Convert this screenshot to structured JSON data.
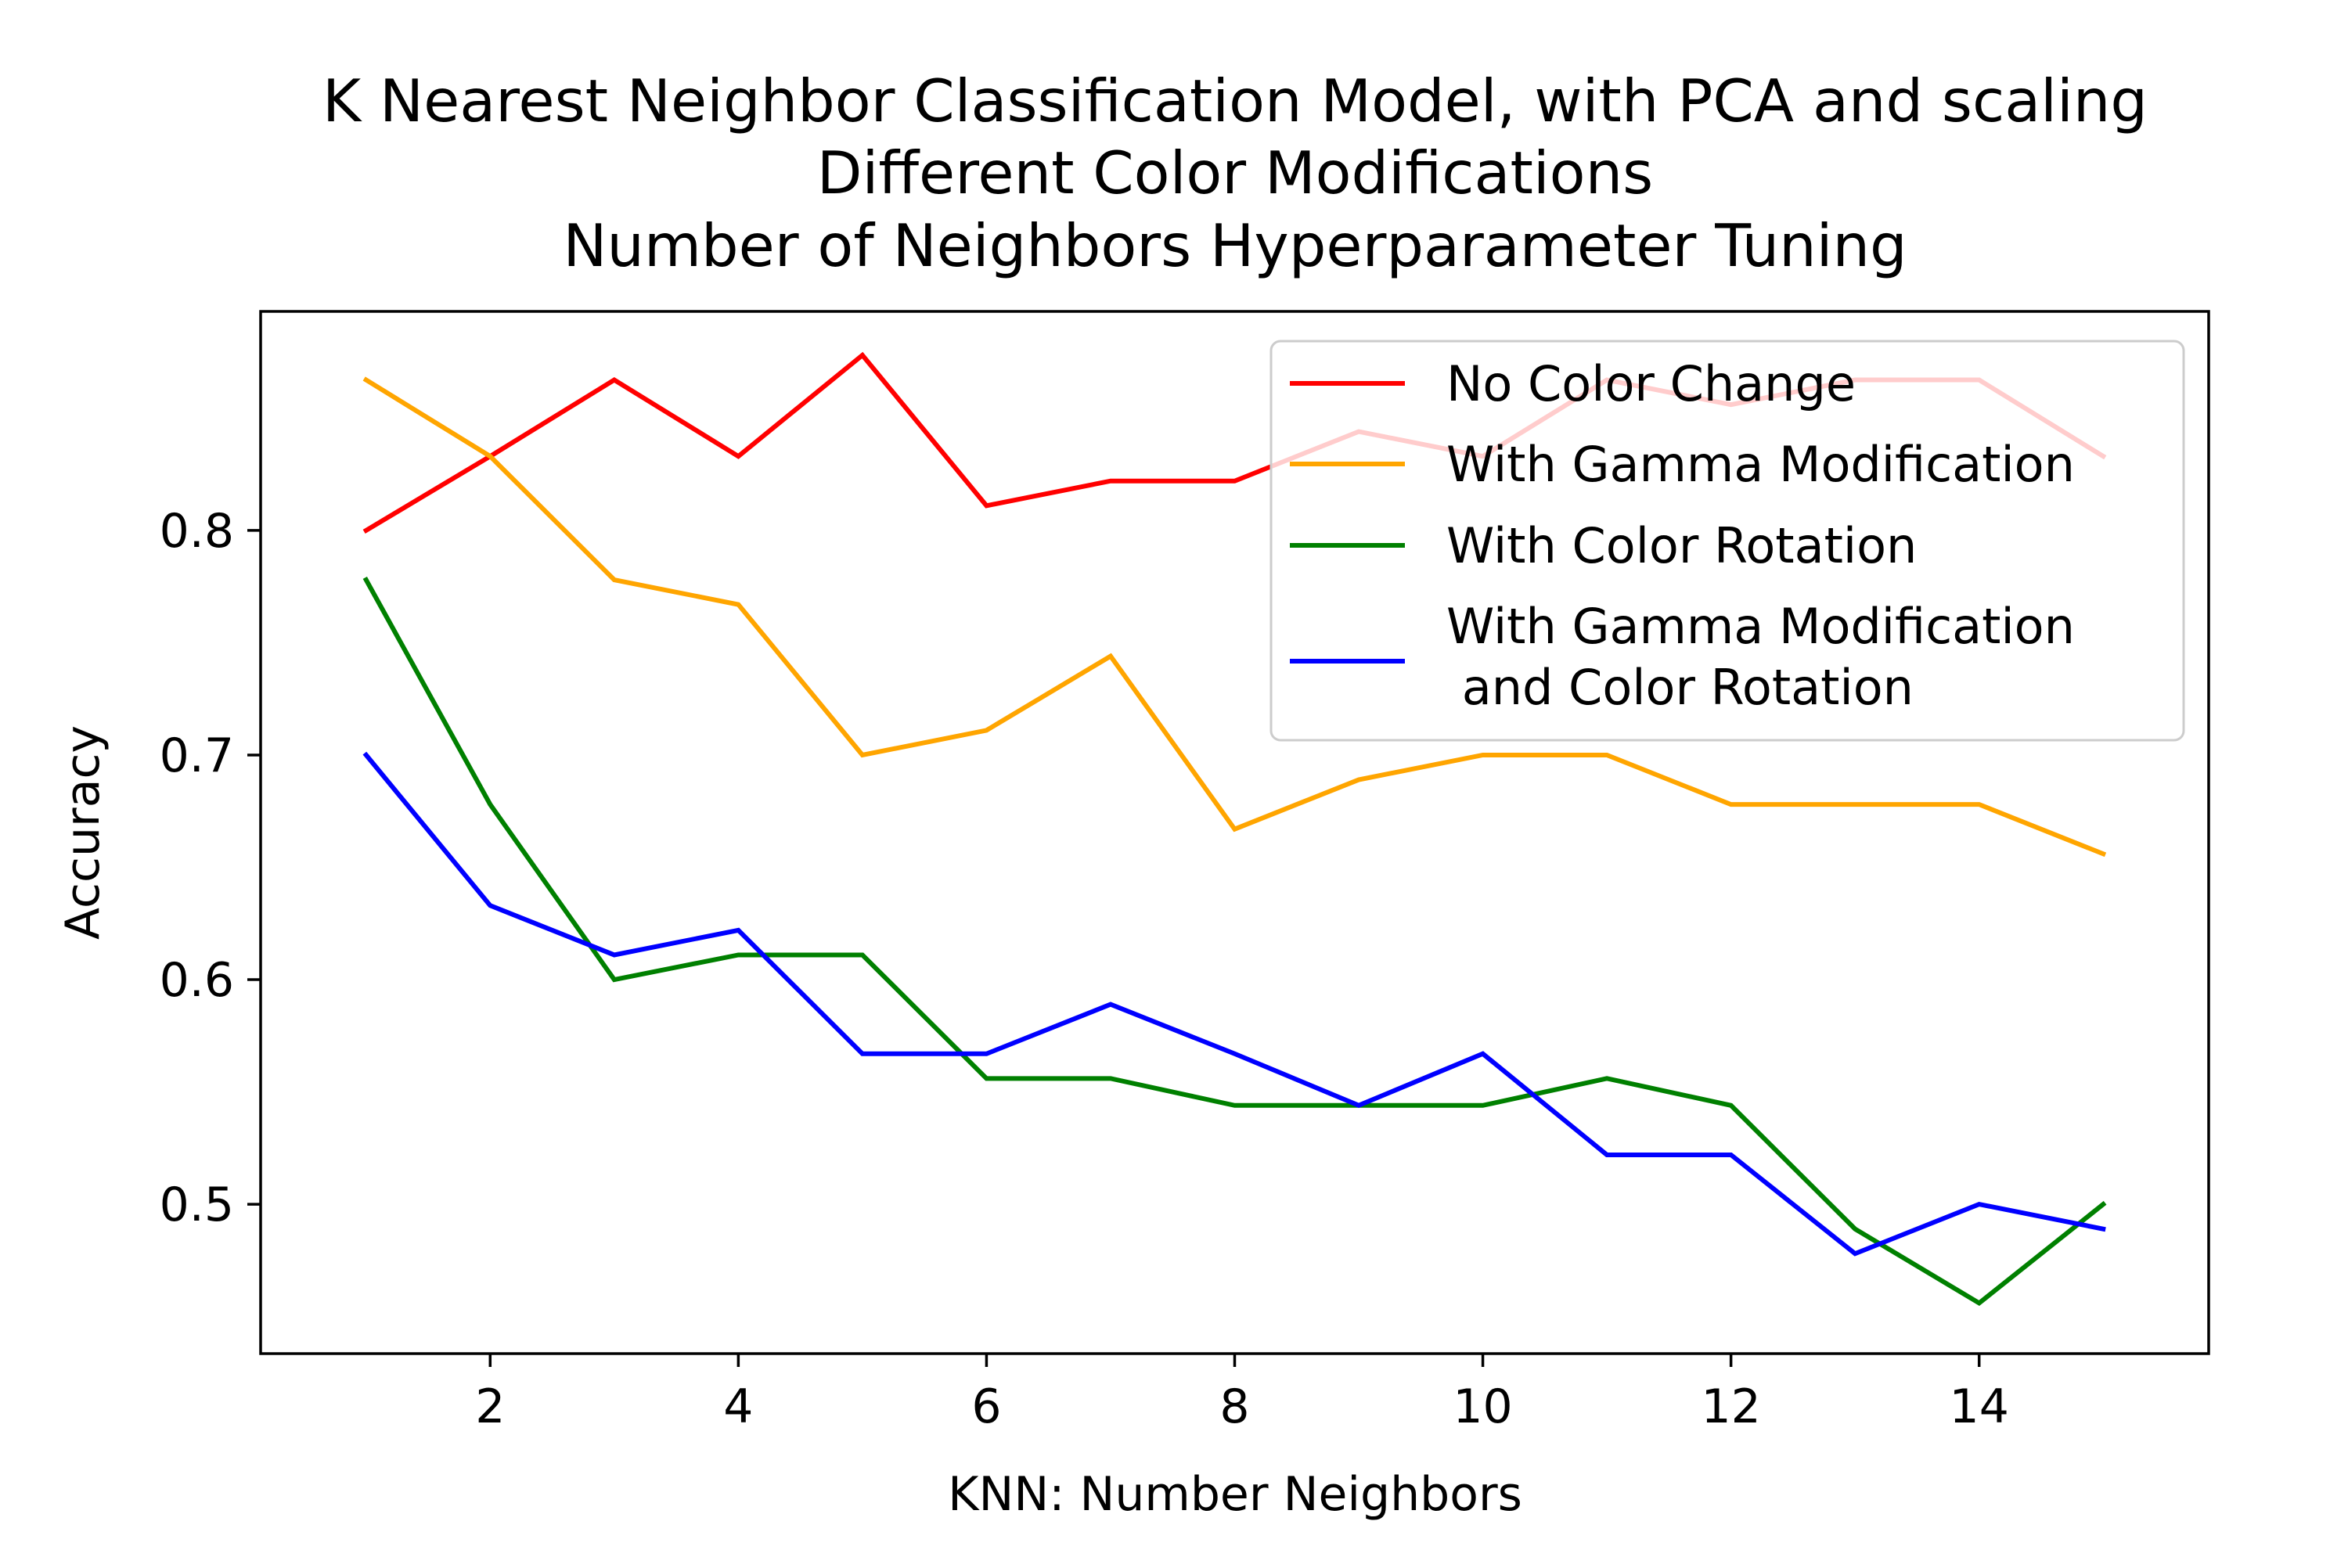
{
  "chart_data": {
    "type": "line",
    "title_lines": [
      "K Nearest Neighbor Classification Model, with PCA and scaling",
      "Different Color Modifications",
      "Number of Neighbors Hyperparameter Tuning"
    ],
    "xlabel": "KNN: Number Neighbors",
    "ylabel": "Accuracy",
    "xlim": [
      0.15,
      15.85
    ],
    "ylim": [
      0.4335,
      0.8975
    ],
    "x_ticks": [
      2,
      4,
      6,
      8,
      10,
      12,
      14
    ],
    "y_ticks": [
      0.5,
      0.6,
      0.7,
      0.8
    ],
    "x_tick_labels": [
      "2",
      "4",
      "6",
      "8",
      "10",
      "12",
      "14"
    ],
    "y_tick_labels": [
      "0.5",
      "0.6",
      "0.7",
      "0.8"
    ],
    "grid": false,
    "legend_position": "top-right",
    "x": [
      1,
      2,
      3,
      4,
      5,
      6,
      7,
      8,
      9,
      10,
      11,
      12,
      13,
      14,
      15
    ],
    "series": [
      {
        "name": "No Color Change",
        "color": "#ff0000",
        "values": [
          0.8,
          0.833,
          0.867,
          0.833,
          0.878,
          0.811,
          0.822,
          0.822,
          0.844,
          0.833,
          0.867,
          0.856,
          0.867,
          0.867,
          0.833
        ]
      },
      {
        "name": "With Gamma Modification",
        "color": "#ffa500",
        "values": [
          0.867,
          0.833,
          0.778,
          0.767,
          0.7,
          0.711,
          0.744,
          0.667,
          0.689,
          0.7,
          0.7,
          0.678,
          0.678,
          0.678,
          0.656
        ]
      },
      {
        "name": "With Color Rotation",
        "color": "#008000",
        "values": [
          0.778,
          0.678,
          0.6,
          0.611,
          0.611,
          0.556,
          0.556,
          0.544,
          0.544,
          0.544,
          0.556,
          0.544,
          0.489,
          0.456,
          0.5
        ]
      },
      {
        "name": "With Gamma Modification\n and Color Rotation",
        "color": "#0000ff",
        "values": [
          0.7,
          0.633,
          0.611,
          0.622,
          0.567,
          0.567,
          0.589,
          0.567,
          0.544,
          0.567,
          0.522,
          0.522,
          0.478,
          0.5,
          0.489
        ]
      }
    ]
  }
}
